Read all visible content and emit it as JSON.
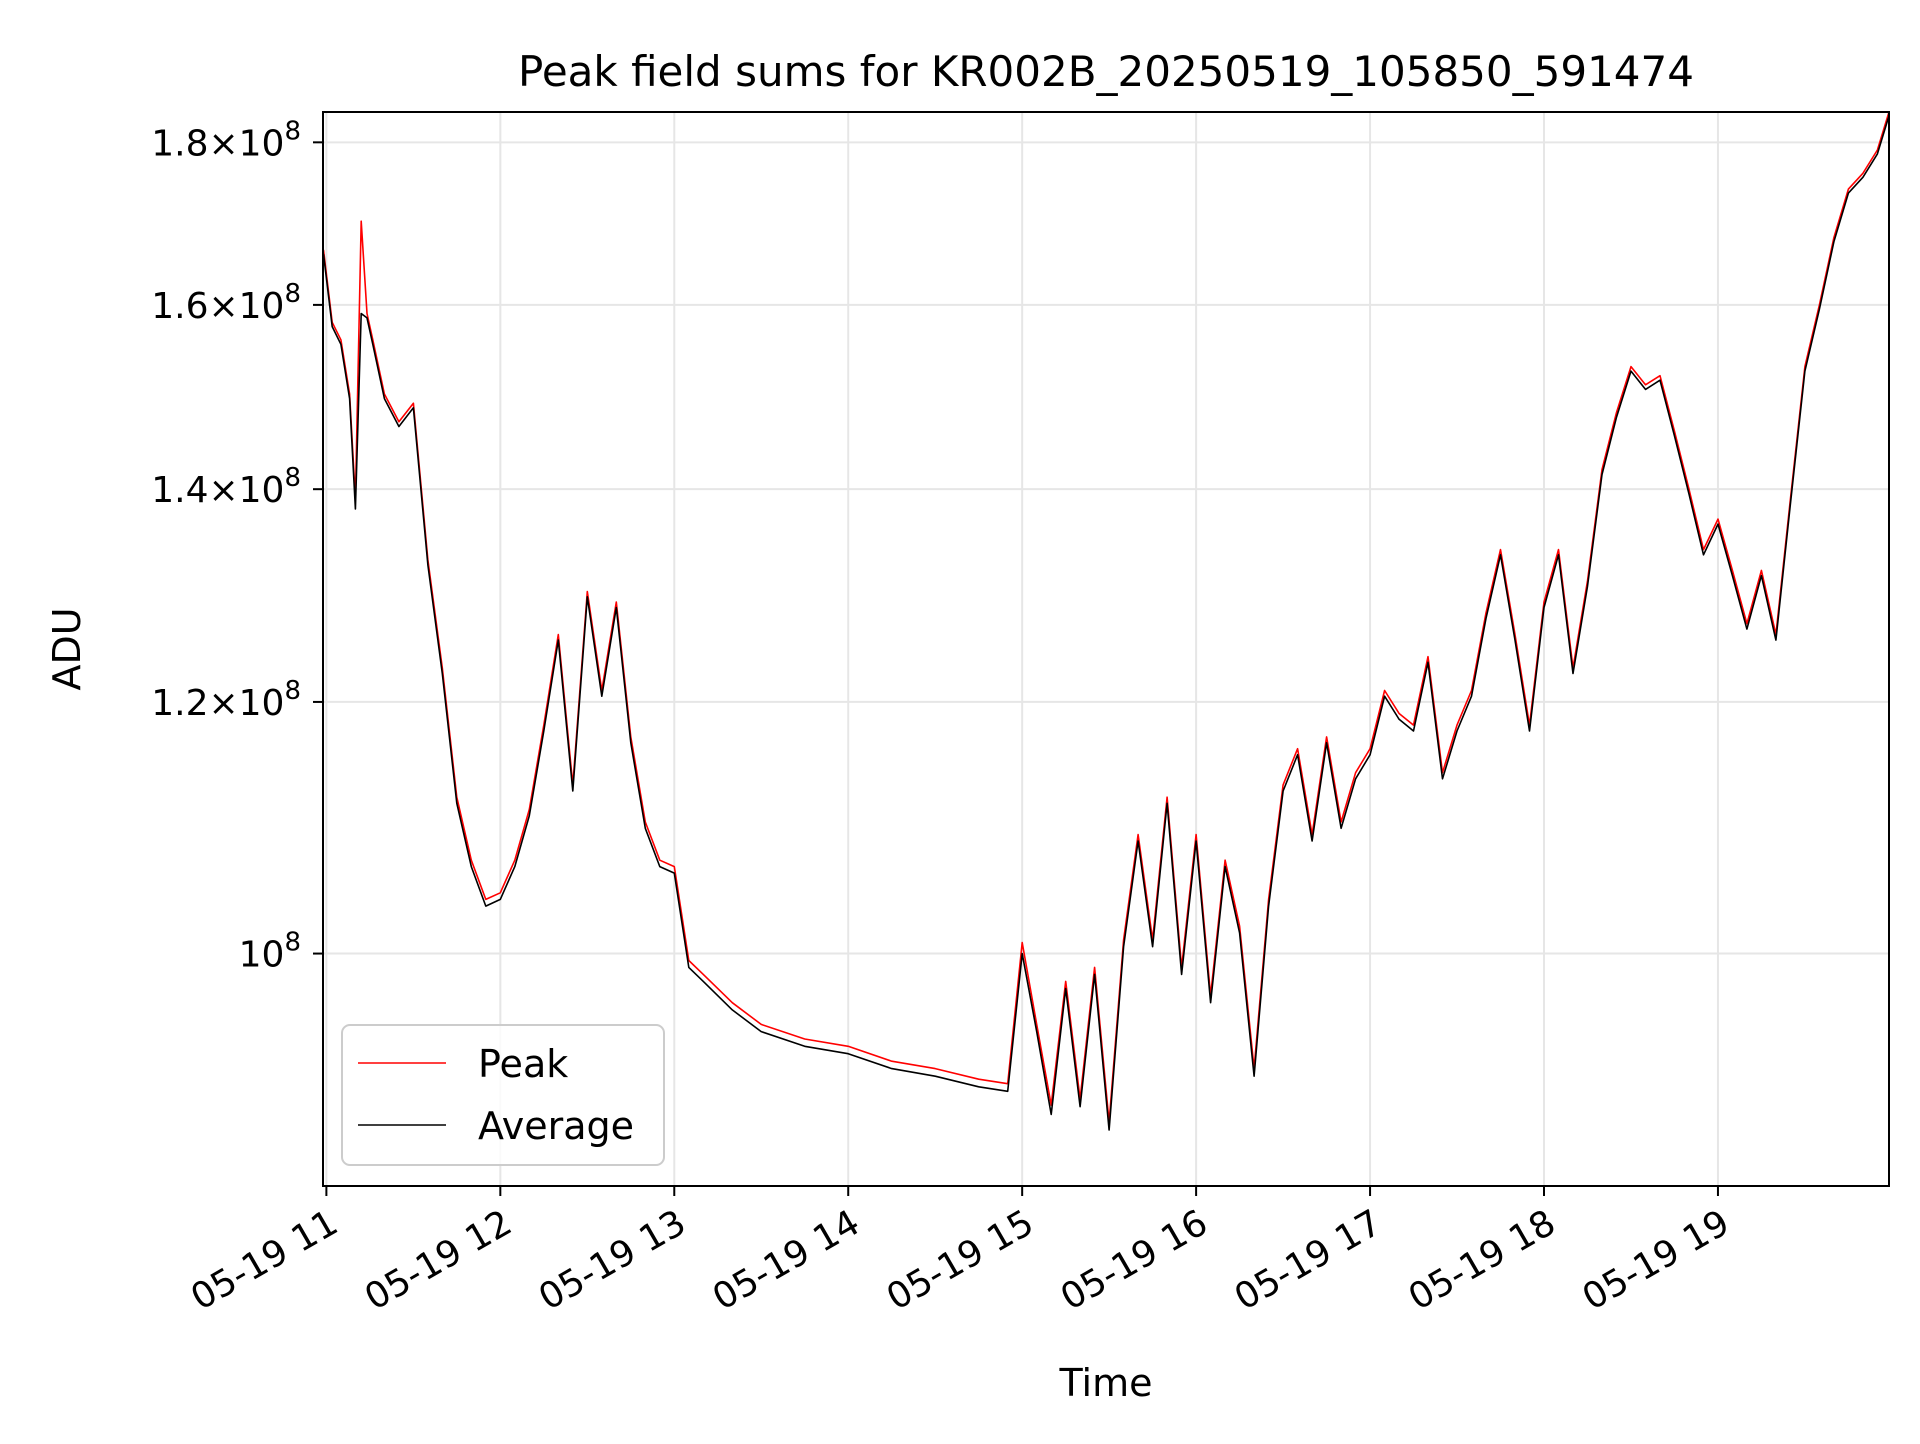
{
  "chart_data": {
    "type": "line",
    "title": "Peak field sums for KR002B_20250519_105850_591474",
    "xlabel": "Time",
    "ylabel": "ADU",
    "y_scale": "log",
    "grid": true,
    "legend_position": "lower-left",
    "xlim": [
      "2025-05-19 10:58:50",
      "2025-05-19 19:59:00"
    ],
    "ylim": [
      84500000,
      184000000
    ],
    "x_ticks": [
      "05-19 11",
      "05-19 12",
      "05-19 13",
      "05-19 14",
      "05-19 15",
      "05-19 16",
      "05-19 17",
      "05-19 18",
      "05-19 19"
    ],
    "x_tick_hours": [
      11,
      12,
      13,
      14,
      15,
      16,
      17,
      18,
      19
    ],
    "y_ticks": [
      {
        "value": 100000000,
        "mantissa": "",
        "base": "10",
        "exp": "8"
      },
      {
        "value": 120000000,
        "mantissa": "1.2×",
        "base": "10",
        "exp": "8"
      },
      {
        "value": 140000000,
        "mantissa": "1.4×",
        "base": "10",
        "exp": "8"
      },
      {
        "value": 160000000,
        "mantissa": "1.6×",
        "base": "10",
        "exp": "8"
      },
      {
        "value": 180000000,
        "mantissa": "1.8×",
        "base": "10",
        "exp": "8"
      }
    ],
    "x": [
      "10:59",
      "11:02",
      "11:05",
      "11:08",
      "11:10",
      "11:12",
      "11:14",
      "11:16",
      "11:20",
      "11:25",
      "11:30",
      "11:35",
      "11:40",
      "11:45",
      "11:50",
      "11:55",
      "12:00",
      "12:05",
      "12:10",
      "12:15",
      "12:20",
      "12:25",
      "12:30",
      "12:35",
      "12:40",
      "12:45",
      "12:50",
      "12:55",
      "13:00",
      "13:05",
      "13:10",
      "13:20",
      "13:30",
      "13:45",
      "14:00",
      "14:15",
      "14:30",
      "14:45",
      "14:55",
      "15:00",
      "15:05",
      "15:10",
      "15:15",
      "15:20",
      "15:25",
      "15:30",
      "15:35",
      "15:40",
      "15:45",
      "15:50",
      "15:55",
      "16:00",
      "16:05",
      "16:10",
      "16:15",
      "16:20",
      "16:25",
      "16:30",
      "16:35",
      "16:40",
      "16:45",
      "16:50",
      "16:55",
      "17:00",
      "17:05",
      "17:10",
      "17:15",
      "17:20",
      "17:25",
      "17:30",
      "17:35",
      "17:40",
      "17:45",
      "17:50",
      "17:55",
      "18:00",
      "18:05",
      "18:10",
      "18:15",
      "18:20",
      "18:25",
      "18:30",
      "18:35",
      "18:40",
      "18:45",
      "18:50",
      "18:55",
      "19:00",
      "19:05",
      "19:10",
      "19:15",
      "19:20",
      "19:25",
      "19:30",
      "19:35",
      "19:40",
      "19:45",
      "19:50",
      "19:55",
      "19:59"
    ],
    "series": [
      {
        "name": "Peak",
        "color": "#ff0000",
        "values": [
          166.5,
          158,
          156,
          150,
          139,
          170,
          159,
          156,
          150,
          147,
          149,
          133,
          123,
          112,
          107,
          104,
          104.5,
          107,
          111,
          118,
          126,
          113,
          130,
          121,
          129,
          117,
          110,
          107,
          106.5,
          99.5,
          98.5,
          96.5,
          95,
          94,
          93.5,
          92.5,
          92,
          91.3,
          91,
          100.8,
          95,
          89.6,
          98,
          90,
          99,
          88.5,
          101,
          109,
          101,
          112,
          99,
          109,
          97,
          107,
          102,
          92,
          104,
          113,
          116,
          109,
          117,
          110,
          114,
          116,
          121,
          119,
          118,
          124,
          114,
          118,
          121,
          128,
          134,
          126,
          118,
          129,
          134,
          123,
          131,
          142,
          148,
          153,
          151,
          152,
          146,
          140,
          134,
          137,
          132,
          127,
          132,
          126,
          139,
          153,
          160,
          168,
          174,
          176,
          179,
          184
        ]
      },
      {
        "name": "Average",
        "color": "#000000",
        "values": [
          166,
          157.5,
          155.5,
          149.5,
          138,
          159,
          158.5,
          155.5,
          149.5,
          146.5,
          148.5,
          132.5,
          122.5,
          111.5,
          106.5,
          103.5,
          104,
          106.5,
          110.5,
          117.5,
          125.5,
          112.5,
          129.5,
          120.5,
          128.5,
          116.5,
          109.5,
          106.5,
          106,
          99,
          98,
          96,
          94.5,
          93.5,
          93,
          92,
          91.5,
          90.8,
          90.5,
          100,
          94.5,
          89,
          97.5,
          89.5,
          98.5,
          88,
          100.5,
          108.5,
          100.5,
          111.5,
          98.5,
          108.5,
          96.5,
          106.5,
          101.5,
          91.5,
          103.5,
          112.5,
          115.5,
          108.5,
          116.5,
          109.5,
          113.5,
          115.5,
          120.5,
          118.5,
          117.5,
          123.5,
          113.5,
          117.5,
          120.5,
          127.5,
          133.5,
          125.5,
          117.5,
          128.5,
          133.5,
          122.5,
          130.5,
          141.5,
          147.5,
          152.5,
          150.5,
          151.5,
          145.5,
          139.5,
          133.5,
          136.5,
          131.5,
          126.5,
          131.5,
          125.5,
          138.5,
          152.5,
          159.5,
          167.5,
          173.5,
          175.5,
          178.5,
          183.5
        ]
      }
    ],
    "values_unit": "1e6 ADU"
  }
}
